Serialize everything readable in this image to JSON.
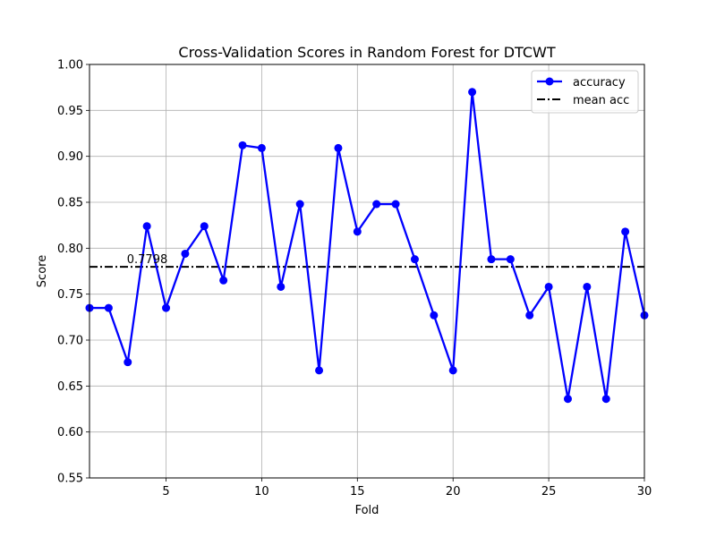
{
  "chart_data": {
    "type": "line",
    "title": "Cross-Validation Scores in Random Forest for DTCWT",
    "xlabel": "Fold",
    "ylabel": "Score",
    "xlim": [
      1,
      30
    ],
    "ylim": [
      0.55,
      1.0
    ],
    "xticks": [
      5,
      10,
      15,
      20,
      25,
      30
    ],
    "yticks": [
      0.55,
      0.6,
      0.65,
      0.7,
      0.75,
      0.8,
      0.85,
      0.9,
      0.95,
      1.0
    ],
    "grid": true,
    "legend_position": "top-right",
    "x": [
      1,
      2,
      3,
      4,
      5,
      6,
      7,
      8,
      9,
      10,
      11,
      12,
      13,
      14,
      15,
      16,
      17,
      18,
      19,
      20,
      21,
      22,
      23,
      24,
      25,
      26,
      27,
      28,
      29,
      30
    ],
    "series": [
      {
        "name": "accuracy",
        "color": "#0000ff",
        "style": "solid-line-with-circle-markers",
        "values": [
          0.735,
          0.735,
          0.676,
          0.824,
          0.735,
          0.794,
          0.824,
          0.765,
          0.912,
          0.909,
          0.758,
          0.848,
          0.667,
          0.909,
          0.818,
          0.848,
          0.848,
          0.788,
          0.727,
          0.667,
          0.97,
          0.788,
          0.788,
          0.727,
          0.758,
          0.636,
          0.758,
          0.636,
          0.818,
          0.727
        ]
      },
      {
        "name": "mean acc",
        "color": "#000000",
        "style": "dash-dot",
        "value": 0.7798
      }
    ],
    "annotations": [
      {
        "text": "0.7798",
        "x": 3,
        "y": 0.7798
      }
    ]
  }
}
